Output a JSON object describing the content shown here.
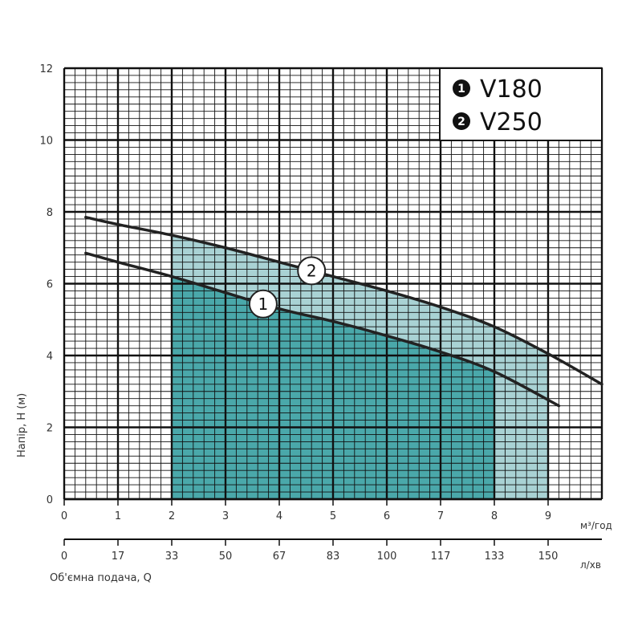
{
  "chart_data": {
    "type": "line",
    "ylabel": "Напір, Н (м)",
    "xlabel": "Об'ємна подача, Q",
    "x_unit_primary": "м³/год",
    "x_unit_secondary": "л/хв",
    "x_primary_ticks": [
      "0",
      "1",
      "2",
      "3",
      "4",
      "5",
      "6",
      "7",
      "8",
      "9"
    ],
    "x_secondary_ticks": [
      "0",
      "17",
      "33",
      "50",
      "67",
      "83",
      "100",
      "117",
      "133",
      "150"
    ],
    "y_ticks": [
      "0",
      "2",
      "4",
      "6",
      "8",
      "10",
      "12"
    ],
    "xlim": [
      0,
      10
    ],
    "ylim": [
      0,
      12
    ],
    "grid": true,
    "legend_position": "top-right",
    "legend": [
      {
        "marker": "1",
        "label": "V180"
      },
      {
        "marker": "2",
        "label": "V250"
      }
    ],
    "series": [
      {
        "name": "V180",
        "marker": "1",
        "x": [
          0.4,
          1,
          2,
          3,
          4,
          5,
          6,
          7,
          8,
          9.2
        ],
        "y": [
          6.85,
          6.6,
          6.2,
          5.75,
          5.3,
          4.95,
          4.55,
          4.1,
          3.55,
          2.6
        ],
        "operating_range": [
          2,
          8
        ],
        "fill_color": "#4aa8aa"
      },
      {
        "name": "V250",
        "marker": "2",
        "x": [
          0.4,
          1,
          2,
          3,
          4,
          5,
          6,
          7,
          8,
          9,
          10
        ],
        "y": [
          7.85,
          7.65,
          7.35,
          7.0,
          6.6,
          6.2,
          5.8,
          5.35,
          4.8,
          4.05,
          3.2
        ],
        "operating_range": [
          2,
          9
        ],
        "fill_color": "#a9d2d4"
      }
    ],
    "line_color": "#222222"
  }
}
